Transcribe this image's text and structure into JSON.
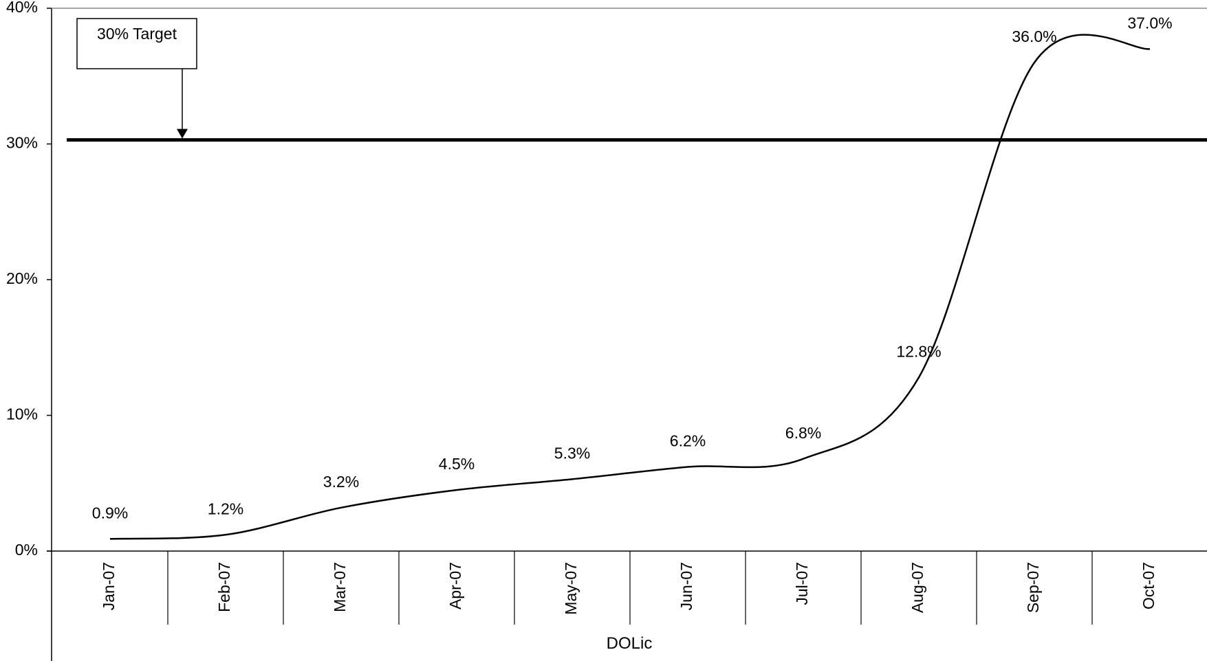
{
  "chart_data": {
    "type": "line",
    "categories": [
      "Jan-07",
      "Feb-07",
      "Mar-07",
      "Apr-07",
      "May-07",
      "Jun-07",
      "Jul-07",
      "Aug-07",
      "Sep-07",
      "Oct-07"
    ],
    "series": [
      {
        "values": [
          0.9,
          1.2,
          3.2,
          4.5,
          5.3,
          6.2,
          6.8,
          12.8,
          36.0,
          37.0
        ],
        "data_labels": [
          "0.9%",
          "1.2%",
          "3.2%",
          "4.5%",
          "5.3%",
          "6.2%",
          "6.8%",
          "12.8%",
          "36.0%",
          "37.0%"
        ],
        "smooth": true,
        "color": "#000000"
      }
    ],
    "ylim": [
      0,
      40
    ],
    "yticks": [
      0,
      10,
      20,
      30,
      40
    ],
    "ytick_labels": [
      "0%",
      "10%",
      "20%",
      "30%",
      "40%"
    ],
    "xlabel": "DOLic",
    "ylabel": "",
    "grid": false,
    "legend": "none",
    "target": {
      "value": 30.3,
      "label": "30% Target"
    }
  }
}
